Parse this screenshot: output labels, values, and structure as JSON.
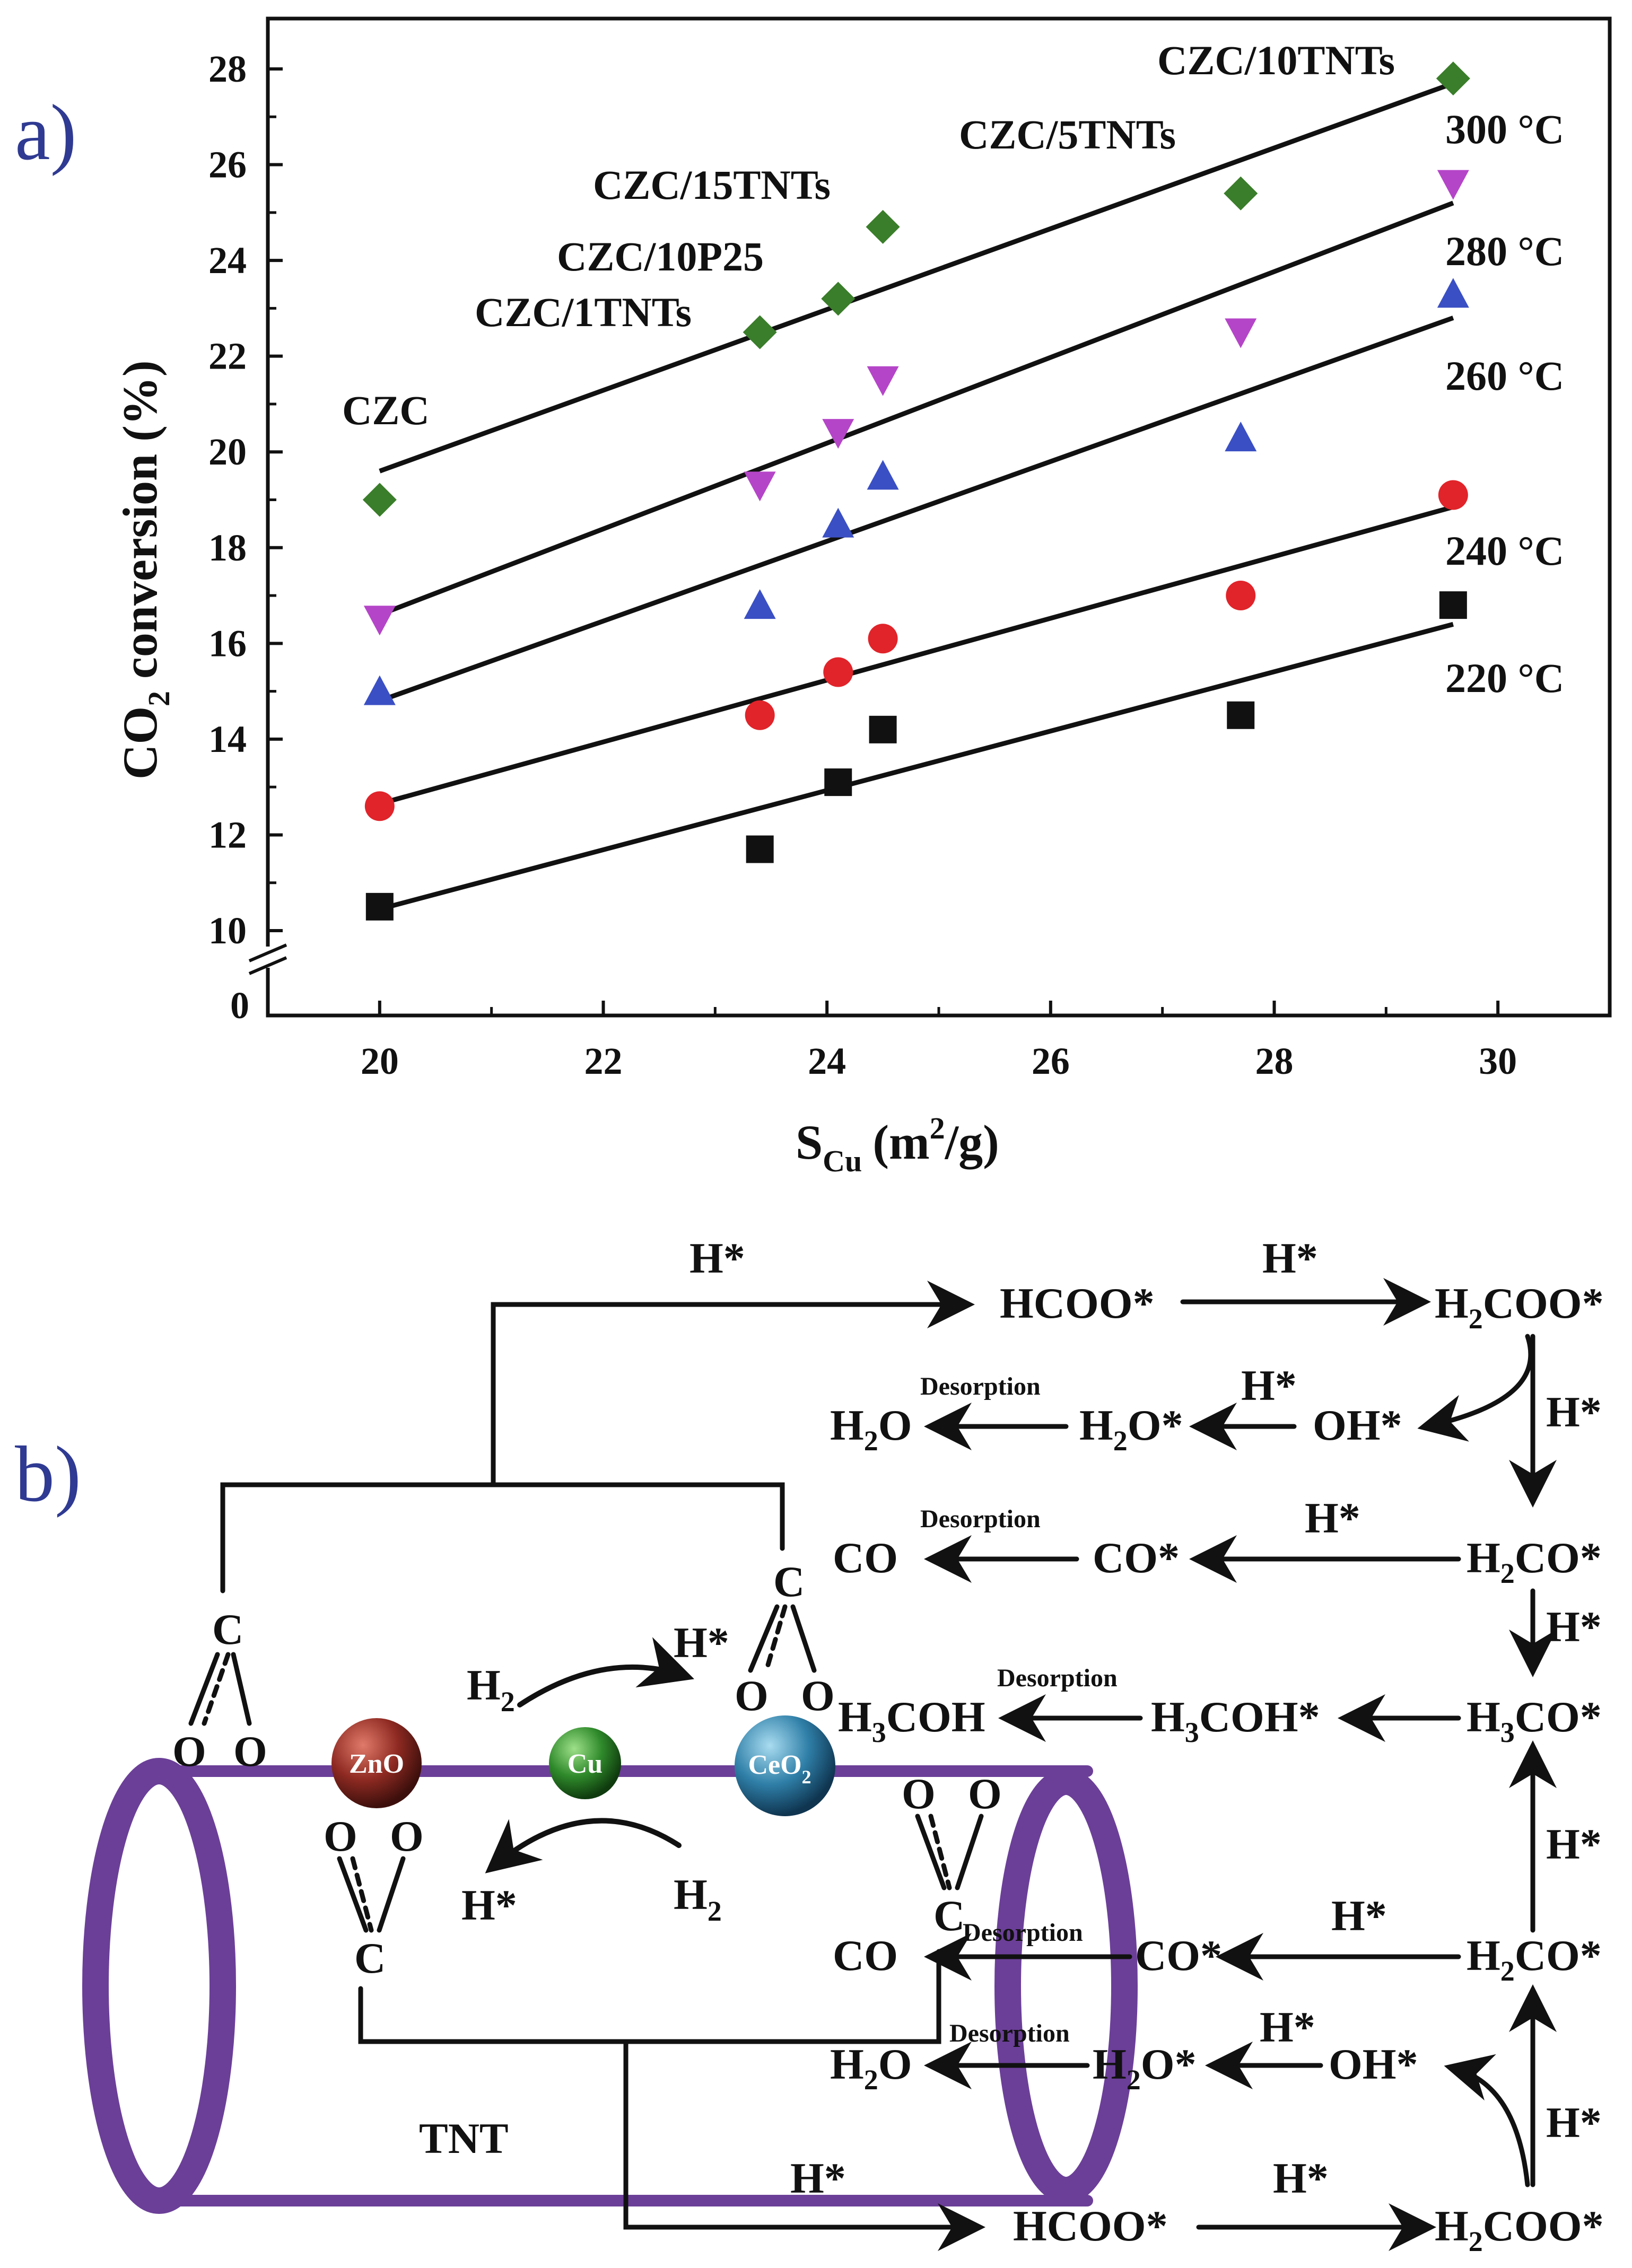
{
  "panel_a_label": "a)",
  "panel_b_label": "b)",
  "chart_data": {
    "type": "scatter",
    "xlabel_main": "S",
    "xlabel_sub": "Cu",
    "xlabel_unit": "(m",
    "xlabel_sup": "2",
    "xlabel_tail": "/g)",
    "ylabel_main": "CO",
    "ylabel_sub": "2",
    "ylabel_tail": " conversion (%)",
    "xlim": [
      19,
      31
    ],
    "ylim_display": [
      10,
      29
    ],
    "x_ticks": [
      "20",
      "22",
      "24",
      "26",
      "28",
      "30"
    ],
    "y_ticks": [
      "10",
      "12",
      "14",
      "16",
      "18",
      "20",
      "22",
      "24",
      "26",
      "28"
    ],
    "y_zero_label": "0",
    "axis_break": true,
    "x": [
      20.0,
      23.4,
      24.1,
      24.5,
      27.7,
      29.6
    ],
    "series": [
      {
        "name": "220 °C",
        "marker": "square",
        "color": "#111111",
        "values": [
          10.5,
          11.7,
          13.1,
          14.2,
          14.5,
          16.8
        ],
        "fit": [
          [
            20.0,
            10.45
          ],
          [
            29.6,
            16.4
          ]
        ]
      },
      {
        "name": "240 °C",
        "marker": "circle",
        "color": "#e0242a",
        "values": [
          12.6,
          14.5,
          15.4,
          16.1,
          17.0,
          19.1
        ],
        "fit": [
          [
            20.0,
            12.65
          ],
          [
            29.6,
            18.85
          ]
        ]
      },
      {
        "name": "260 °C",
        "marker": "triangle-up",
        "color": "#3a4fc4",
        "values": [
          15.0,
          16.8,
          18.5,
          19.5,
          20.3,
          23.3
        ],
        "fit": [
          [
            20.0,
            14.8
          ],
          [
            29.6,
            22.8
          ]
        ]
      },
      {
        "name": "280 °C",
        "marker": "triangle-down",
        "color": "#b545c8",
        "values": [
          16.5,
          19.3,
          20.4,
          21.5,
          22.5,
          25.6
        ],
        "fit": [
          [
            20.0,
            16.6
          ],
          [
            29.6,
            25.2
          ]
        ]
      },
      {
        "name": "300 °C",
        "marker": "diamond",
        "color": "#3a7d2a",
        "values": [
          19.0,
          22.5,
          23.2,
          24.7,
          25.4,
          27.8
        ],
        "fit": [
          [
            20.0,
            19.6
          ],
          [
            29.6,
            27.7
          ]
        ]
      }
    ],
    "catalyst_labels": [
      "CZC",
      "CZC/1TNTs",
      "CZC/10P25",
      "CZC/15TNTs",
      "CZC/5TNTs",
      "CZC/10TNTs"
    ]
  },
  "mechanism": {
    "tube_label": "TNT",
    "zno_label": "ZnO",
    "cu_label": "Cu",
    "ceo2_label": "CeO",
    "ceo2_sub": "2",
    "h2_label": "H",
    "h2_sub": "2",
    "hstar": "H*",
    "c_atom": "C",
    "o_atom": "O",
    "desorption": "Desorption",
    "top": {
      "hcoo": "HCOO*",
      "h2coo_pre": "H",
      "h2coo_sub": "2",
      "h2coo_post": "COO*",
      "oh": "OH*",
      "h2o_star_pre": "H",
      "h2o_star_sub": "2",
      "h2o_star_post": "O*",
      "h2o_pre": "H",
      "h2o_sub": "2",
      "h2o_post": "O",
      "h2co_pre": "H",
      "h2co_sub": "2",
      "h2co_post": "CO*",
      "co_star": "CO*",
      "co": "CO",
      "h3co_pre": "H",
      "h3co_sub": "3",
      "h3co_post": "CO*",
      "h3coh_star_pre": "H",
      "h3coh_star_sub": "3",
      "h3coh_star_post": "COH*",
      "h3coh_pre": "H",
      "h3coh_sub": "3",
      "h3coh_post": "COH"
    },
    "bottom": {
      "hcoo": "HCOO*",
      "h2coo_pre": "H",
      "h2coo_sub": "2",
      "h2coo_post": "COO*",
      "oh": "OH*",
      "h2o_star_pre": "H",
      "h2o_star_sub": "2",
      "h2o_star_post": "O*",
      "h2o_pre": "H",
      "h2o_sub": "2",
      "h2o_post": "O",
      "h2co_pre": "H",
      "h2co_sub": "2",
      "h2co_post": "CO*",
      "co_star": "CO*",
      "co": "CO"
    },
    "colors": {
      "tube": "#6b3f98",
      "zno": "#8e2a22",
      "cu": "#2f8a2b",
      "ceo2": "#2f7fa8",
      "panel_label": "#2f3a92"
    }
  }
}
